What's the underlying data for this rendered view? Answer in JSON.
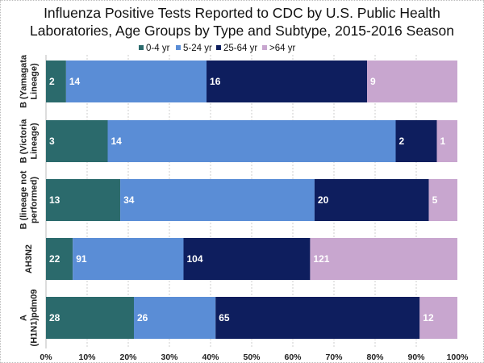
{
  "chart_data": {
    "type": "bar",
    "orientation": "horizontal",
    "stacked": "100%",
    "title_lines": [
      "Influenza Positive Tests Reported to CDC by U.S. Public Health",
      "Laboratories, Age Groups by Type and Subtype, 2015-2016 Season"
    ],
    "categories": [
      [
        "B (Yamagata",
        "Lineage)"
      ],
      [
        "B (Victoria",
        "Lineage)"
      ],
      [
        "B (lineage not",
        "performed)"
      ],
      [
        "AH3N2"
      ],
      [
        "A",
        "(H1N1)pdm09"
      ]
    ],
    "series": [
      {
        "name": "0-4 yr",
        "color": "#2b6a6c",
        "values": [
          2,
          3,
          13,
          22,
          28
        ]
      },
      {
        "name": "5-24 yr",
        "color": "#5a8dd6",
        "values": [
          14,
          14,
          34,
          91,
          26
        ]
      },
      {
        "name": "25-64 yr",
        "color": "#0e1e5e",
        "values": [
          16,
          2,
          20,
          104,
          65
        ]
      },
      {
        "name": ">64 yr",
        "color": "#c8a6cf",
        "values": [
          9,
          1,
          5,
          121,
          12
        ]
      }
    ],
    "xticks": [
      "0%",
      "10%",
      "20%",
      "30%",
      "40%",
      "50%",
      "60%",
      "70%",
      "80%",
      "90%",
      "100%"
    ],
    "xlim": [
      0,
      100
    ],
    "grid": "vertical dashed",
    "legend": "top-center"
  }
}
